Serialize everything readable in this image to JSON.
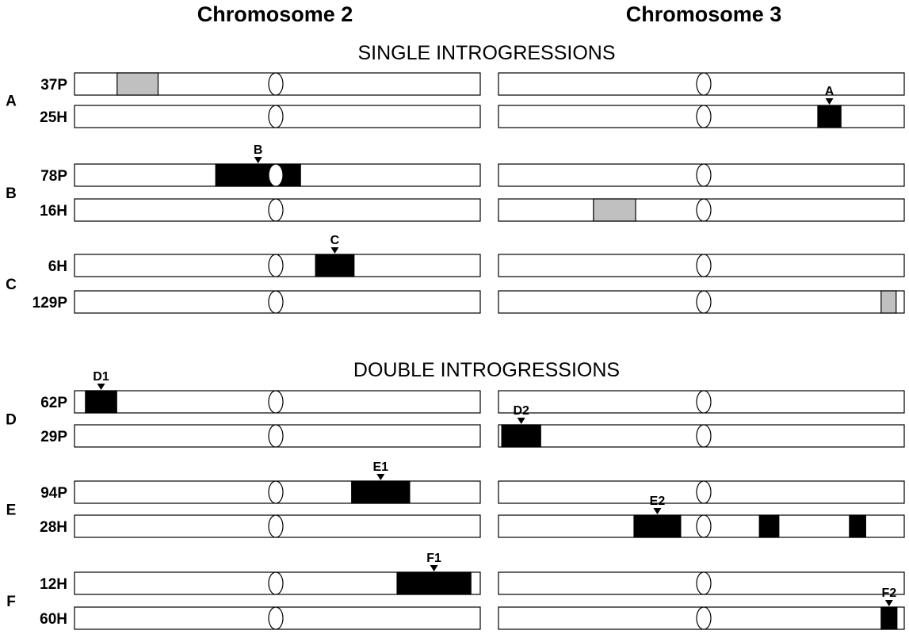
{
  "headers": {
    "chr2": "Chromosome 2",
    "chr3": "Chromosome 3"
  },
  "sections": {
    "single": "SINGLE INTROGRESSIONS",
    "double": "DOUBLE INTROGRESSIONS"
  },
  "colors": {
    "introgression": "#000000",
    "partial": "#c0c0c0",
    "outline": "#000000",
    "bar_fill": "#ffffff"
  },
  "groups": [
    {
      "label": "A",
      "rows": [
        {
          "label": "37P",
          "chr2": [
            {
              "start": 0.105,
              "end": 0.206,
              "color": "gray"
            }
          ],
          "chr3": []
        },
        {
          "label": "25H",
          "chr2": [],
          "chr3": [
            {
              "start": 0.787,
              "end": 0.844,
              "color": "black",
              "marker": "A"
            }
          ]
        }
      ]
    },
    {
      "label": "B",
      "rows": [
        {
          "label": "78P",
          "chr2": [
            {
              "start": 0.348,
              "end": 0.557,
              "color": "black",
              "marker": "B"
            }
          ],
          "chr3": []
        },
        {
          "label": "16H",
          "chr2": [],
          "chr3": [
            {
              "start": 0.234,
              "end": 0.338,
              "color": "gray"
            }
          ]
        }
      ]
    },
    {
      "label": "C",
      "rows": [
        {
          "label": "6H",
          "chr2": [
            {
              "start": 0.594,
              "end": 0.689,
              "color": "black",
              "marker": "C"
            }
          ],
          "chr3": []
        },
        {
          "label": "129P",
          "chr2": [],
          "chr3": [
            {
              "start": 0.943,
              "end": 0.98,
              "color": "gray"
            }
          ]
        }
      ]
    },
    {
      "label": "D",
      "rows": [
        {
          "label": "62P",
          "chr2": [
            {
              "start": 0.027,
              "end": 0.104,
              "color": "black",
              "marker": "D1"
            }
          ],
          "chr3": []
        },
        {
          "label": "29P",
          "chr2": [],
          "chr3": [
            {
              "start": 0.008,
              "end": 0.104,
              "color": "black",
              "marker": "D2"
            }
          ]
        }
      ]
    },
    {
      "label": "E",
      "rows": [
        {
          "label": "94P",
          "chr2": [
            {
              "start": 0.683,
              "end": 0.826,
              "color": "black",
              "marker": "E1"
            }
          ],
          "chr3": []
        },
        {
          "label": "28H",
          "chr2": [],
          "chr3": [
            {
              "start": 0.334,
              "end": 0.449,
              "color": "black",
              "marker": "E2"
            },
            {
              "start": 0.643,
              "end": 0.691,
              "color": "black"
            },
            {
              "start": 0.865,
              "end": 0.905,
              "color": "black"
            }
          ]
        }
      ]
    },
    {
      "label": "F",
      "rows": [
        {
          "label": "12H",
          "chr2": [
            {
              "start": 0.795,
              "end": 0.977,
              "color": "black",
              "marker": "F1"
            }
          ],
          "chr3": []
        },
        {
          "label": "60H",
          "chr2": [],
          "chr3": [
            {
              "start": 0.943,
              "end": 0.982,
              "color": "black",
              "marker": "F2"
            }
          ]
        }
      ]
    }
  ]
}
